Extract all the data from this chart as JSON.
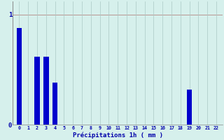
{
  "categories": [
    0,
    1,
    2,
    3,
    4,
    5,
    6,
    7,
    8,
    9,
    10,
    11,
    12,
    13,
    14,
    15,
    16,
    17,
    18,
    19,
    20,
    21,
    22
  ],
  "values": [
    0.88,
    0.0,
    0.62,
    0.62,
    0.38,
    0,
    0,
    0,
    0,
    0,
    0,
    0,
    0,
    0,
    0,
    0,
    0,
    0,
    0,
    0.32,
    0,
    0,
    0
  ],
  "bar_color": "#0000cc",
  "background_color": "#d6f0ec",
  "grid_color": "#aac8c4",
  "xlabel": "Précipitations 1h ( mm )",
  "xlabel_color": "#0000aa",
  "tick_color": "#0000aa",
  "ylim": [
    0,
    1.12
  ],
  "yticks": [
    0,
    1
  ],
  "ytick_labels": [
    "0",
    "1"
  ],
  "bar_width": 0.6,
  "n_bars": 23
}
